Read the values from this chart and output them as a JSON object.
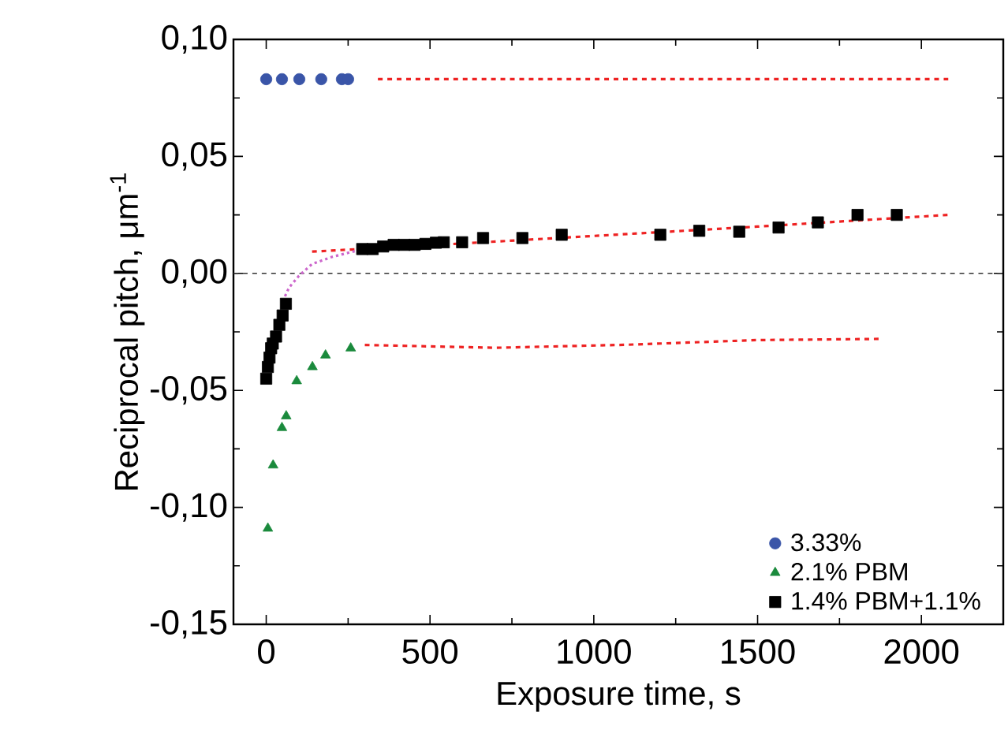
{
  "chart_data": {
    "type": "scatter",
    "xlabel": "Exposure time, s",
    "ylabel": "Reciprocal pitch, μm$^{-1}$",
    "xlim": [
      -100,
      2250
    ],
    "ylim": [
      -0.15,
      0.1
    ],
    "xticks": [
      0,
      500,
      1000,
      1500,
      2000
    ],
    "yticks": [
      {
        "value": -0.15,
        "label": "-0,15"
      },
      {
        "value": -0.1,
        "label": "-0,10"
      },
      {
        "value": -0.05,
        "label": "-0,05"
      },
      {
        "value": 0,
        "label": "0,00"
      },
      {
        "value": 0.05,
        "label": "0,05"
      },
      {
        "value": 0.1,
        "label": "0,10"
      }
    ],
    "legend": "bottom right",
    "grid": false,
    "ref_lines": [
      {
        "axis": "y",
        "value": 0,
        "color": "#333333",
        "line_style": "dashed"
      }
    ],
    "series": [
      {
        "name": "3.33%",
        "marker": "circle",
        "color": "#3a55a8",
        "x": [
          0,
          48,
          101,
          168,
          231,
          250
        ],
        "values": [
          0.083,
          0.083,
          0.083,
          0.083,
          0.083,
          0.083
        ]
      },
      {
        "name": "2.1% PBM",
        "marker": "triangle",
        "color": "#1a8a3c",
        "x": [
          5,
          21,
          48,
          61,
          93,
          141,
          181,
          258
        ],
        "values": [
          -0.109,
          -0.082,
          -0.066,
          -0.061,
          -0.046,
          -0.04,
          -0.035,
          -0.032
        ]
      },
      {
        "name": "1.4% PBM+1.1%",
        "marker": "square",
        "color": "#000000",
        "x": [
          0,
          5,
          10,
          15,
          20,
          30,
          40,
          50,
          60,
          293,
          325,
          357,
          389,
          421,
          453,
          486,
          518,
          542,
          598,
          662,
          782,
          902,
          1203,
          1322,
          1444,
          1564,
          1684,
          1805,
          1925
        ],
        "values": [
          -0.045,
          -0.04,
          -0.036,
          -0.032,
          -0.03,
          -0.027,
          -0.022,
          -0.018,
          -0.013,
          0.0104,
          0.0104,
          0.0115,
          0.0122,
          0.0122,
          0.0122,
          0.0126,
          0.0131,
          0.0133,
          0.0133,
          0.0151,
          0.0151,
          0.0165,
          0.0165,
          0.0182,
          0.0178,
          0.0196,
          0.0218,
          0.025,
          0.025
        ]
      },
      {
        "type": "line",
        "line_style": "dashed",
        "color": "#ee2222",
        "x": [
          341,
          2082
        ],
        "values": [
          0.083,
          0.083
        ]
      },
      {
        "type": "line",
        "line_style": "dashed",
        "color": "#ee2222",
        "x": [
          301,
          700,
          1100,
          1500,
          1880
        ],
        "values": [
          -0.0306,
          -0.0318,
          -0.0305,
          -0.0285,
          -0.028
        ]
      },
      {
        "type": "line",
        "line_style": "dashed",
        "color": "#ee2222",
        "x": [
          140,
          500,
          1000,
          1500,
          2082
        ],
        "values": [
          0.0093,
          0.012,
          0.016,
          0.02,
          0.025
        ]
      },
      {
        "type": "line",
        "line_style": "dotted",
        "color": "#cc66cc",
        "x": [
          50,
          70,
          100,
          140,
          200,
          270
        ],
        "values": [
          -0.012,
          -0.006,
          -0.001,
          0.004,
          0.007,
          0.0095
        ]
      }
    ]
  }
}
